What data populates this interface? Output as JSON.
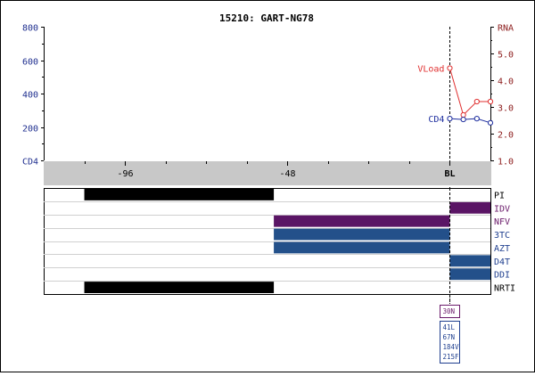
{
  "chart_data": {
    "type": "line",
    "title": "15210: GART-NG78",
    "x_ticks": [
      -96,
      -48,
      "BL"
    ],
    "baseline_label": "BL",
    "left_axis": {
      "label": "CD4",
      "ticks": [
        "800",
        "600",
        "400",
        "200",
        "CD4"
      ],
      "tick_values": [
        800,
        600,
        400,
        200,
        0
      ],
      "ylim": [
        0,
        800
      ],
      "color": "#1f2f8f"
    },
    "right_axis": {
      "label": "RNA",
      "ticks": [
        "RNA",
        "5.0",
        "4.0",
        "3.0",
        "2.0",
        "1.0"
      ],
      "tick_values": [
        6.0,
        5.0,
        4.0,
        3.0,
        2.0,
        1.0
      ],
      "ylim": [
        1.0,
        6.0
      ],
      "color": "#8b1a1a"
    },
    "xlim": [
      -120,
      12
    ],
    "series": [
      {
        "name": "VLoad",
        "axis": "right",
        "color": "#e03030",
        "x": [
          0,
          4,
          8,
          12
        ],
        "y": [
          4.45,
          2.7,
          3.2,
          3.2
        ]
      },
      {
        "name": "CD4",
        "axis": "left",
        "color": "#1f2f9f",
        "x": [
          0,
          4,
          8,
          12
        ],
        "y": [
          250,
          245,
          250,
          225
        ]
      }
    ],
    "drugs": [
      {
        "name": "PI",
        "color": "#000000",
        "label_color": "#000000",
        "bars": [
          {
            "start": -108,
            "end": -52
          }
        ]
      },
      {
        "name": "IDV",
        "color": "#5a1565",
        "label_color": "#6a1a6a",
        "bars": [
          {
            "start": 0,
            "end": 12
          }
        ]
      },
      {
        "name": "NFV",
        "color": "#5a1565",
        "label_color": "#6a1a6a",
        "bars": [
          {
            "start": -52,
            "end": 0
          }
        ]
      },
      {
        "name": "3TC",
        "color": "#23508a",
        "label_color": "#1f3f8f",
        "bars": [
          {
            "start": -52,
            "end": 0
          }
        ]
      },
      {
        "name": "AZT",
        "color": "#23508a",
        "label_color": "#1f3f8f",
        "bars": [
          {
            "start": -52,
            "end": 0
          }
        ]
      },
      {
        "name": "D4T",
        "color": "#23508a",
        "label_color": "#1f3f8f",
        "bars": [
          {
            "start": 0,
            "end": 12
          }
        ]
      },
      {
        "name": "DDI",
        "color": "#23508a",
        "label_color": "#1f3f8f",
        "bars": [
          {
            "start": 0,
            "end": 12
          }
        ]
      },
      {
        "name": "NRTI",
        "color": "#000000",
        "label_color": "#000000",
        "bars": [
          {
            "start": -108,
            "end": -52
          }
        ]
      }
    ],
    "mutation_boxes": [
      {
        "color": "#6a1a6a",
        "items": [
          "30N"
        ]
      },
      {
        "color": "#1f3f8f",
        "items": [
          "41L",
          "67N",
          "184V",
          "215F"
        ]
      }
    ]
  }
}
